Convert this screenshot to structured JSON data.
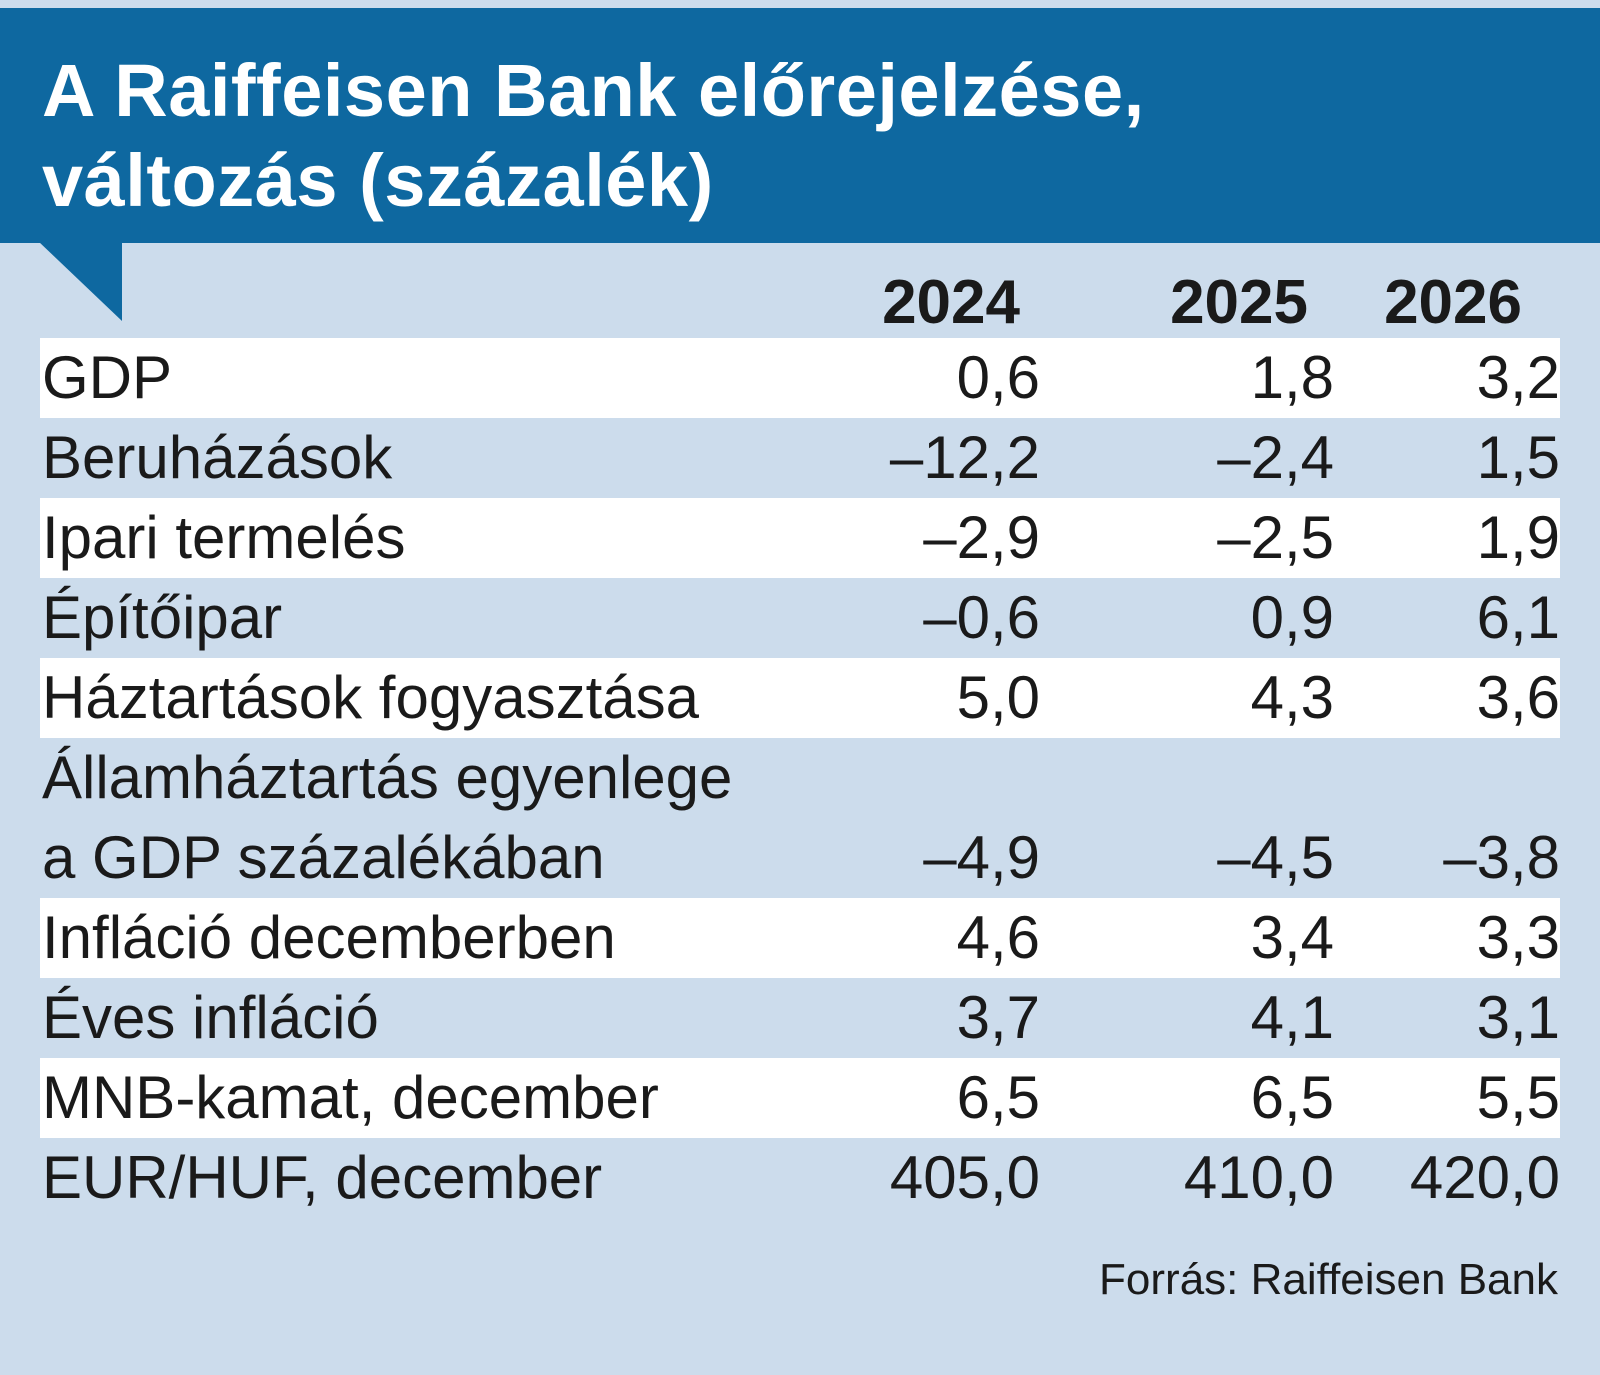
{
  "chart_data": {
    "type": "table",
    "title": [
      "A Raiffeisen Bank előrejelzése,",
      "változás (százalék)"
    ],
    "columns": [
      "2024",
      "2025",
      "2026"
    ],
    "rows": [
      {
        "label": [
          "GDP"
        ],
        "values": [
          "0,6",
          "1,8",
          "3,2"
        ]
      },
      {
        "label": [
          "Beruházások"
        ],
        "values": [
          "–12,2",
          "–2,4",
          "1,5"
        ]
      },
      {
        "label": [
          "Ipari termelés"
        ],
        "values": [
          "–2,9",
          "–2,5",
          "1,9"
        ]
      },
      {
        "label": [
          "Építőipar"
        ],
        "values": [
          "–0,6",
          "0,9",
          "6,1"
        ]
      },
      {
        "label": [
          "Háztartások fogyasztása"
        ],
        "values": [
          "5,0",
          "4,3",
          "3,6"
        ]
      },
      {
        "label": [
          "Államháztartás egyenlege",
          "a GDP százalékában"
        ],
        "values": [
          "–4,9",
          "–4,5",
          "–3,8"
        ]
      },
      {
        "label": [
          "Infláció decemberben"
        ],
        "values": [
          "4,6",
          "3,4",
          "3,3"
        ]
      },
      {
        "label": [
          "Éves infláció"
        ],
        "values": [
          "3,7",
          "4,1",
          "3,1"
        ]
      },
      {
        "label": [
          "MNB-kamat, december"
        ],
        "values": [
          "6,5",
          "6,5",
          "5,5"
        ]
      },
      {
        "label": [
          "EUR/HUF, december"
        ],
        "values": [
          "405,0",
          "410,0",
          "420,0"
        ]
      }
    ],
    "source": "Forrás: Raiffeisen Bank"
  },
  "colors": {
    "header": "#0e68a0",
    "background": "#ccdcec",
    "stripe": "#ffffff",
    "text": "#1a1a1a"
  }
}
